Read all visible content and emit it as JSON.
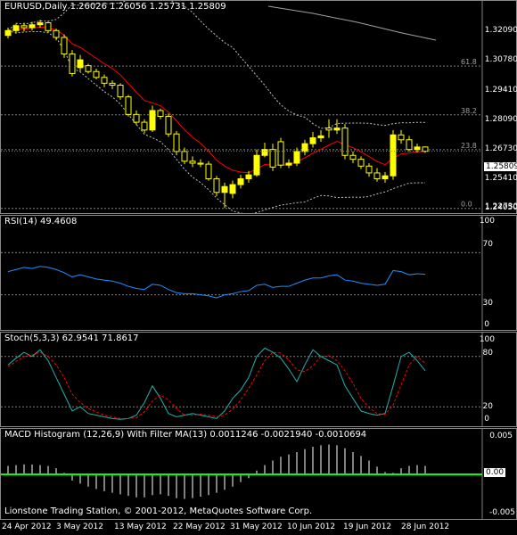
{
  "colors": {
    "background": "#000000",
    "bull_candle": "#ffff00",
    "bear_candle": "#000000",
    "ma": "#ff0000",
    "bands": "#c0c0c0",
    "rsi": "#1e90ff",
    "stoch_main": "#20b2aa",
    "stoch_signal": "#ff0000",
    "macd_hist": "#ffffff",
    "macd_zero": "#00ff00",
    "grid": "#808080"
  },
  "main_panel": {
    "label": "EURUSD,Daily  1.26026 1.26056 1.25731 1.25809",
    "price_ticks": [
      "1.32090",
      "1.30780",
      "1.29410",
      "1.28090",
      "1.26730",
      "1.25410",
      "1.24050",
      "1.22730"
    ],
    "current_price": "1.25809",
    "fibo_levels": [
      {
        "label": "61.8",
        "price": 1.3018
      },
      {
        "label": "38.2",
        "price": 1.2768
      },
      {
        "label": "23.8",
        "price": 1.2589
      },
      {
        "label": "0.0",
        "price": 1.2288
      }
    ]
  },
  "rsi_panel": {
    "label": "RSI(14) 49.4608",
    "ticks": [
      "100",
      "70",
      "30",
      "0"
    ]
  },
  "stoch_panel": {
    "label": "Stoch(5,3,3) 62.9541 71.8617",
    "ticks": [
      "100",
      "80",
      "20",
      "0"
    ]
  },
  "macd_panel": {
    "label": "MACD Histogram (12,26,9) With Filter MA(13) 0.0011246 -0.0021940 -0.0010694",
    "ticks": [
      "0.005",
      "0.00",
      "-0.005"
    ]
  },
  "footer": "Lionstone Trading Station, © 2001-2012, MetaQuotes Software Corp.",
  "x_axis_labels": [
    "24 Apr 2012",
    "3 May 2012",
    "13 May 2012",
    "22 May 2012",
    "31 May 2012",
    "10 Jun 2012",
    "19 Jun 2012",
    "28 Jun 2012"
  ],
  "chart_data": [
    {
      "type": "candlestick",
      "title": "EURUSD,Daily",
      "ylim": [
        1.2273,
        1.327
      ],
      "x": [
        "2012-04-24",
        "2012-04-25",
        "2012-04-26",
        "2012-04-27",
        "2012-04-30",
        "2012-05-01",
        "2012-05-02",
        "2012-05-03",
        "2012-05-04",
        "2012-05-07",
        "2012-05-08",
        "2012-05-09",
        "2012-05-10",
        "2012-05-11",
        "2012-05-14",
        "2012-05-15",
        "2012-05-16",
        "2012-05-17",
        "2012-05-18",
        "2012-05-21",
        "2012-05-22",
        "2012-05-23",
        "2012-05-24",
        "2012-05-25",
        "2012-05-28",
        "2012-05-29",
        "2012-05-30",
        "2012-05-31",
        "2012-06-01",
        "2012-06-04",
        "2012-06-05",
        "2012-06-06",
        "2012-06-07",
        "2012-06-08",
        "2012-06-11",
        "2012-06-12",
        "2012-06-13",
        "2012-06-14",
        "2012-06-15",
        "2012-06-18",
        "2012-06-19",
        "2012-06-20",
        "2012-06-21",
        "2012-06-22",
        "2012-06-25",
        "2012-06-26",
        "2012-06-27",
        "2012-06-28",
        "2012-06-29",
        "2012-07-02",
        "2012-07-03",
        "2012-07-04",
        "2012-07-05"
      ],
      "open": [
        1.3175,
        1.32,
        1.3225,
        1.3215,
        1.323,
        1.324,
        1.32,
        1.3165,
        1.308,
        1.301,
        1.302,
        1.299,
        1.296,
        1.293,
        1.292,
        1.286,
        1.277,
        1.273,
        1.269,
        1.279,
        1.276,
        1.267,
        1.258,
        1.253,
        1.252,
        1.2515,
        1.244,
        1.237,
        1.2365,
        1.241,
        1.244,
        1.246,
        1.256,
        1.259,
        1.263,
        1.251,
        1.252,
        1.258,
        1.262,
        1.265,
        1.27,
        1.269,
        1.27,
        1.256,
        1.254,
        1.2505,
        1.247,
        1.244,
        1.2455,
        1.2665,
        1.264,
        1.259,
        1.2603
      ],
      "close": [
        1.32,
        1.3225,
        1.3215,
        1.323,
        1.324,
        1.32,
        1.3165,
        1.308,
        1.298,
        1.305,
        1.299,
        1.296,
        1.293,
        1.292,
        1.286,
        1.277,
        1.273,
        1.269,
        1.279,
        1.276,
        1.267,
        1.258,
        1.253,
        1.252,
        1.2515,
        1.244,
        1.237,
        1.24,
        1.241,
        1.244,
        1.246,
        1.256,
        1.259,
        1.25,
        1.251,
        1.252,
        1.258,
        1.262,
        1.265,
        1.266,
        1.269,
        1.27,
        1.256,
        1.254,
        1.2505,
        1.247,
        1.244,
        1.2455,
        1.2665,
        1.264,
        1.259,
        1.2603,
        1.2581
      ],
      "high": [
        1.3215,
        1.3235,
        1.324,
        1.3245,
        1.3255,
        1.3245,
        1.321,
        1.318,
        1.31,
        1.3075,
        1.303,
        1.3005,
        1.2975,
        1.2945,
        1.293,
        1.287,
        1.279,
        1.2745,
        1.2815,
        1.28,
        1.2775,
        1.2685,
        1.26,
        1.2555,
        1.254,
        1.253,
        1.2455,
        1.242,
        1.243,
        1.246,
        1.248,
        1.259,
        1.2625,
        1.262,
        1.265,
        1.254,
        1.26,
        1.264,
        1.268,
        1.269,
        1.2745,
        1.2745,
        1.272,
        1.258,
        1.2555,
        1.252,
        1.2495,
        1.2475,
        1.269,
        1.269,
        1.266,
        1.262,
        1.2606
      ],
      "low": [
        1.316,
        1.3185,
        1.3195,
        1.32,
        1.3215,
        1.319,
        1.315,
        1.306,
        1.2965,
        1.299,
        1.298,
        1.295,
        1.291,
        1.29,
        1.2845,
        1.276,
        1.2715,
        1.2675,
        1.268,
        1.2745,
        1.2655,
        1.256,
        1.2515,
        1.25,
        1.25,
        1.243,
        1.235,
        1.229,
        1.234,
        1.239,
        1.242,
        1.245,
        1.255,
        1.248,
        1.2495,
        1.2495,
        1.2505,
        1.256,
        1.26,
        1.263,
        1.265,
        1.267,
        1.254,
        1.252,
        1.249,
        1.245,
        1.2425,
        1.242,
        1.2435,
        1.262,
        1.258,
        1.2575,
        1.2573
      ]
    },
    {
      "type": "line",
      "title": "RSI(14) 49.4608",
      "ylim": [
        0,
        100
      ],
      "series": [
        {
          "name": "RSI(14)",
          "values": [
            52,
            54,
            56,
            55,
            57,
            56,
            54,
            51,
            47,
            49,
            47,
            45,
            44,
            43,
            41,
            38,
            36,
            35,
            40,
            39,
            35,
            32,
            31,
            31,
            30,
            29,
            27,
            30,
            31,
            33,
            34,
            39,
            40,
            37,
            38,
            38,
            41,
            44,
            46,
            46,
            48,
            49,
            44,
            43,
            41,
            40,
            39,
            40,
            53,
            52,
            49,
            50,
            49.5
          ]
        }
      ]
    },
    {
      "type": "line",
      "title": "Stoch(5,3,3) 62.9541 71.8617",
      "ylim": [
        0,
        100
      ],
      "series": [
        {
          "name": "Main",
          "values": [
            70,
            78,
            85,
            80,
            88,
            75,
            55,
            35,
            15,
            20,
            12,
            10,
            8,
            6,
            5,
            6,
            10,
            25,
            45,
            30,
            12,
            8,
            10,
            12,
            10,
            8,
            6,
            15,
            30,
            40,
            55,
            80,
            90,
            85,
            78,
            65,
            50,
            70,
            88,
            80,
            75,
            70,
            45,
            30,
            15,
            12,
            10,
            12,
            45,
            80,
            85,
            75,
            63
          ]
        },
        {
          "name": "Signal",
          "values": [
            68,
            74,
            80,
            82,
            85,
            80,
            70,
            55,
            35,
            25,
            18,
            14,
            10,
            8,
            6,
            6,
            7,
            14,
            27,
            34,
            28,
            18,
            10,
            10,
            11,
            10,
            8,
            10,
            17,
            28,
            42,
            58,
            75,
            85,
            84,
            76,
            64,
            62,
            69,
            80,
            81,
            75,
            63,
            48,
            30,
            19,
            12,
            11,
            22,
            46,
            70,
            80,
            72
          ]
        }
      ]
    },
    {
      "type": "bar",
      "title": "MACD Histogram (12,26,9) With Filter MA(13) 0.0011246 -0.0021940 -0.0010694",
      "ylim": [
        -0.005,
        0.005
      ],
      "series": [
        {
          "name": "Histogram",
          "values": [
            0.0011,
            0.0012,
            0.0013,
            0.0013,
            0.0012,
            0.0011,
            0.0008,
            0.0002,
            -0.0008,
            -0.0012,
            -0.0016,
            -0.0019,
            -0.0022,
            -0.0024,
            -0.0026,
            -0.0028,
            -0.003,
            -0.003,
            -0.0027,
            -0.0026,
            -0.0028,
            -0.0031,
            -0.0032,
            -0.0031,
            -0.0029,
            -0.0027,
            -0.0024,
            -0.002,
            -0.0016,
            -0.001,
            -0.0005,
            0.0005,
            0.0012,
            0.0018,
            0.0023,
            0.0026,
            0.0029,
            0.0033,
            0.0036,
            0.0038,
            0.0039,
            0.0038,
            0.0034,
            0.0029,
            0.0024,
            0.0018,
            0.001,
            0.0003,
            0.0002,
            0.0008,
            0.0011,
            0.0012,
            0.0011
          ]
        }
      ]
    }
  ]
}
